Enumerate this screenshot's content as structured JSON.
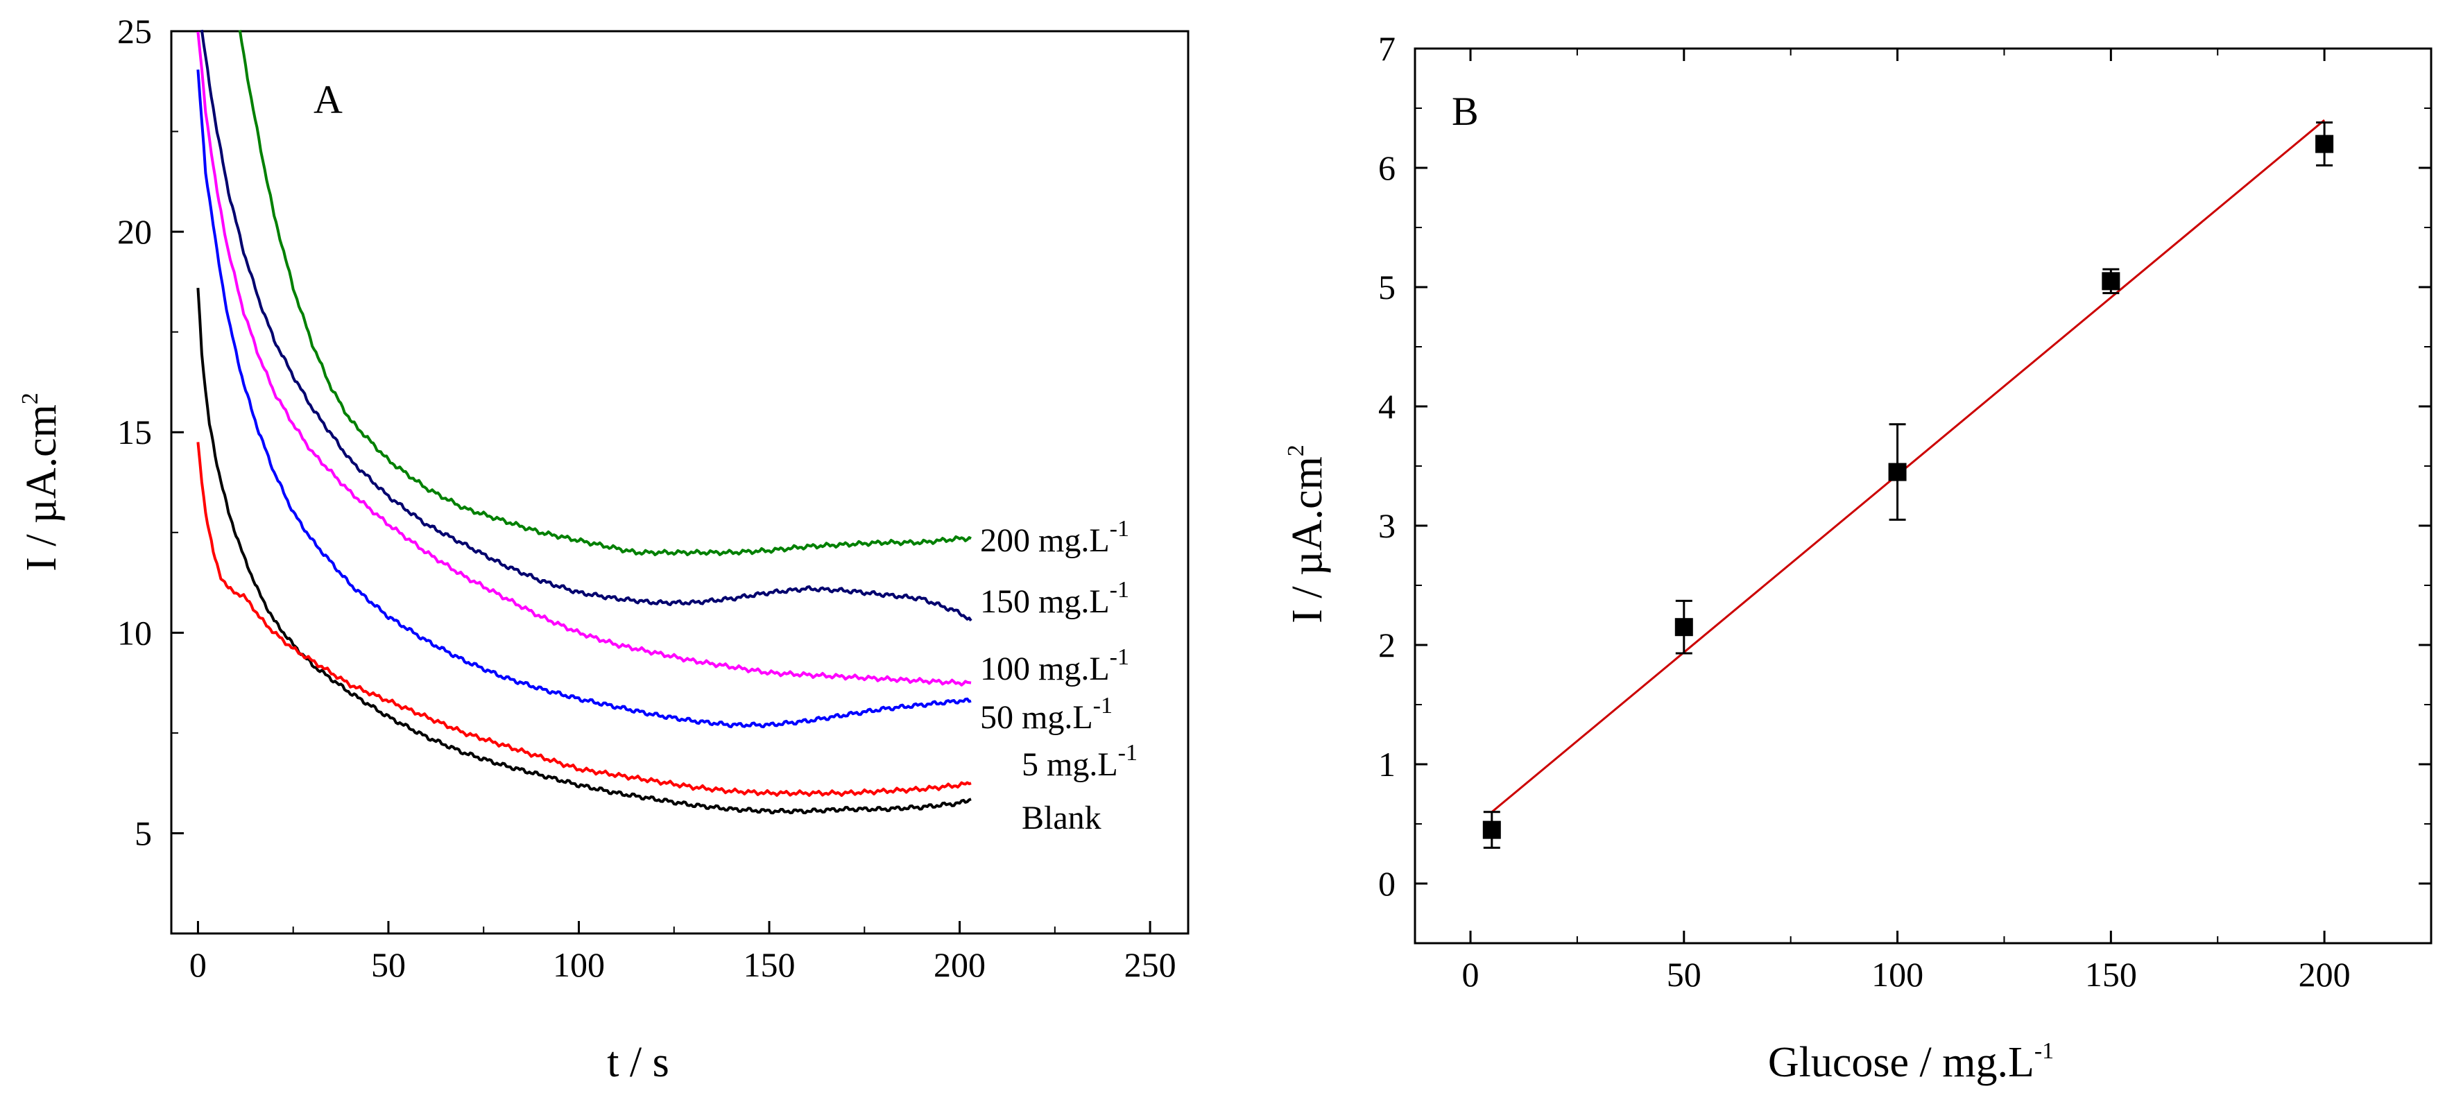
{
  "chart_data": [
    {
      "panel": "A",
      "type": "line",
      "xlabel": "t / s",
      "ylabel": "I / µA.cm",
      "ylabel_sup": "2",
      "xlim": [
        -7,
        260
      ],
      "ylim": [
        2.5,
        25
      ],
      "xticks": [
        0,
        50,
        100,
        150,
        200,
        250
      ],
      "yticks": [
        5,
        10,
        15,
        20,
        25
      ],
      "series": [
        {
          "name": "Blank",
          "label": "Blank",
          "label_sup": "",
          "color": "#000000",
          "x": [
            0,
            1,
            2,
            3,
            5,
            8,
            12,
            16,
            20,
            25,
            30,
            40,
            50,
            60,
            70,
            80,
            90,
            100,
            110,
            120,
            130,
            140,
            150,
            160,
            170,
            180,
            190,
            200,
            203
          ],
          "y": [
            18.6,
            17.0,
            16.0,
            15.2,
            14.2,
            13.0,
            11.9,
            11.0,
            10.3,
            9.7,
            9.2,
            8.5,
            7.9,
            7.4,
            7.0,
            6.7,
            6.45,
            6.2,
            6.0,
            5.85,
            5.7,
            5.6,
            5.55,
            5.55,
            5.6,
            5.6,
            5.65,
            5.75,
            5.85
          ]
        },
        {
          "name": "5 mg.L-1",
          "label": "5 mg.L",
          "label_sup": "-1",
          "color": "#ff0000",
          "x": [
            0,
            1,
            2,
            4,
            6,
            8,
            10,
            12,
            14,
            16,
            20,
            25,
            30,
            40,
            50,
            60,
            70,
            80,
            90,
            100,
            110,
            120,
            130,
            140,
            150,
            160,
            170,
            180,
            190,
            200,
            203
          ],
          "y": [
            14.7,
            13.8,
            13.0,
            12.0,
            11.4,
            11.1,
            11.0,
            10.9,
            10.7,
            10.4,
            10.0,
            9.6,
            9.3,
            8.7,
            8.3,
            7.9,
            7.5,
            7.2,
            6.9,
            6.6,
            6.45,
            6.3,
            6.15,
            6.05,
            6.0,
            6.0,
            6.0,
            6.05,
            6.1,
            6.2,
            6.25
          ]
        },
        {
          "name": "50 mg.L-1",
          "label": "50 mg.L",
          "label_sup": "-1",
          "color": "#0000ff",
          "x": [
            0,
            2,
            5,
            8,
            12,
            16,
            20,
            25,
            30,
            40,
            50,
            60,
            70,
            80,
            90,
            100,
            110,
            120,
            130,
            140,
            150,
            160,
            170,
            180,
            190,
            200,
            203
          ],
          "y": [
            24.0,
            21.5,
            19.5,
            17.8,
            16.2,
            15.0,
            14.0,
            13.0,
            12.3,
            11.2,
            10.4,
            9.8,
            9.3,
            8.9,
            8.6,
            8.35,
            8.15,
            7.95,
            7.8,
            7.7,
            7.7,
            7.8,
            7.95,
            8.1,
            8.2,
            8.3,
            8.3
          ]
        },
        {
          "name": "100 mg.L-1",
          "label": "100 mg.L",
          "label_sup": "-1",
          "color": "#ff00ff",
          "x": [
            0,
            2,
            5,
            8,
            12,
            16,
            20,
            25,
            30,
            40,
            50,
            60,
            70,
            80,
            90,
            100,
            110,
            120,
            130,
            140,
            150,
            160,
            170,
            180,
            190,
            200,
            203
          ],
          "y": [
            25.0,
            23.0,
            21.0,
            19.5,
            18.0,
            16.9,
            16.0,
            15.2,
            14.5,
            13.5,
            12.7,
            12.0,
            11.4,
            10.9,
            10.4,
            10.0,
            9.7,
            9.5,
            9.3,
            9.15,
            9.0,
            8.95,
            8.9,
            8.85,
            8.8,
            8.75,
            8.75
          ]
        },
        {
          "name": "150 mg.L-1",
          "label": "150 mg.L",
          "label_sup": "-1",
          "color": "#00006e",
          "x": [
            1,
            3,
            5,
            8,
            12,
            16,
            20,
            25,
            30,
            40,
            50,
            60,
            70,
            80,
            90,
            100,
            110,
            120,
            130,
            140,
            150,
            160,
            170,
            180,
            190,
            200,
            203
          ],
          "y": [
            25.0,
            23.7,
            22.5,
            21.0,
            19.5,
            18.3,
            17.3,
            16.4,
            15.6,
            14.3,
            13.4,
            12.7,
            12.2,
            11.7,
            11.3,
            11.0,
            10.85,
            10.75,
            10.75,
            10.85,
            11.0,
            11.1,
            11.05,
            10.95,
            10.85,
            10.5,
            10.3
          ]
        },
        {
          "name": "200 mg.L-1",
          "label": "200 mg.L",
          "label_sup": "-1",
          "color": "#008000",
          "x": [
            11,
            14,
            17,
            20,
            25,
            30,
            35,
            40,
            50,
            60,
            70,
            80,
            90,
            100,
            110,
            115,
            120,
            130,
            140,
            150,
            160,
            170,
            180,
            190,
            200,
            203
          ],
          "y": [
            25.0,
            23.3,
            21.8,
            20.4,
            18.6,
            17.2,
            16.1,
            15.3,
            14.3,
            13.6,
            13.1,
            12.8,
            12.5,
            12.3,
            12.1,
            12.0,
            12.0,
            12.0,
            12.0,
            12.05,
            12.15,
            12.2,
            12.25,
            12.25,
            12.35,
            12.35
          ]
        }
      ]
    },
    {
      "panel": "B",
      "type": "scatter",
      "xlabel": "Glucose / mg.L",
      "xlabel_sup": "-1",
      "ylabel": "I / µA.cm",
      "ylabel_sup": "2",
      "xlim": [
        -13,
        225
      ],
      "ylim": [
        -0.5,
        7
      ],
      "xticks": [
        0,
        50,
        100,
        150,
        200
      ],
      "yticks": [
        0,
        1,
        2,
        3,
        4,
        5,
        6,
        7
      ],
      "points": {
        "x": [
          5,
          50,
          100,
          150,
          200
        ],
        "y": [
          0.45,
          2.15,
          3.45,
          5.05,
          6.2
        ],
        "err": [
          0.15,
          0.22,
          0.4,
          0.1,
          0.18
        ],
        "color": "#000000"
      },
      "fit": {
        "color": "#cc0000",
        "x": [
          5,
          200
        ],
        "y": [
          0.6,
          6.4
        ]
      }
    }
  ],
  "curve_label_order": [
    "200 mg.L-1",
    "150 mg.L-1",
    "100 mg.L-1",
    "50 mg.L-1",
    "5 mg.L-1",
    "Blank"
  ]
}
